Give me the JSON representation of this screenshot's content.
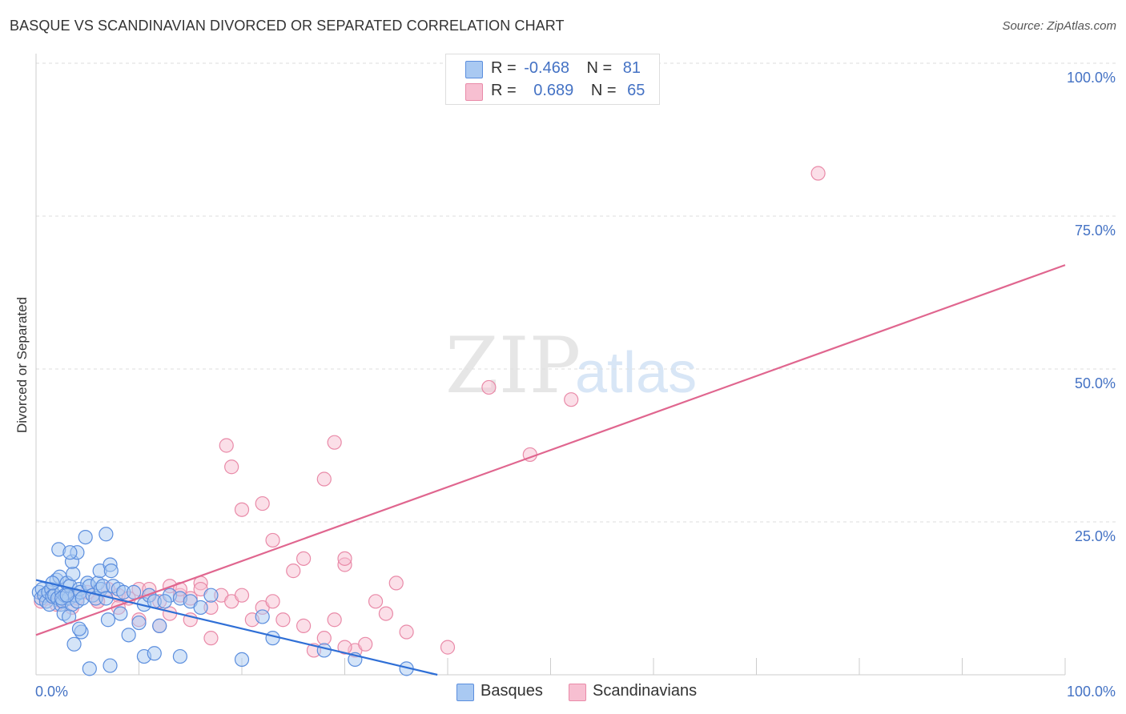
{
  "title": "BASQUE VS SCANDINAVIAN DIVORCED OR SEPARATED CORRELATION CHART",
  "source": "Source: ZipAtlas.com",
  "watermark": {
    "zip": "ZIP",
    "atlas": "atlas"
  },
  "legend": {
    "rows": [
      {
        "r_label": "R =",
        "r_value": "-0.468",
        "n_label": "N =",
        "n_value": "81"
      },
      {
        "r_label": "R =",
        "r_value": "0.689",
        "n_label": "N =",
        "n_value": "65"
      }
    ]
  },
  "bottom_legend": {
    "basques": "Basques",
    "scandinavians": "Scandinavians"
  },
  "colors": {
    "basque_fill": "#a9c9f2",
    "basque_stroke": "#5b8ede",
    "basque_line": "#2f6fd6",
    "scand_fill": "#f7bfd1",
    "scand_stroke": "#e98aa8",
    "scand_line": "#e0668f",
    "axis_label": "#4472c4",
    "grid": "#dddddd"
  },
  "chart_data": {
    "type": "scatter",
    "title": "BASQUE VS SCANDINAVIAN DIVORCED OR SEPARATED CORRELATION CHART",
    "xlabel": "",
    "ylabel": "Divorced or Separated",
    "xlim": [
      0,
      100
    ],
    "ylim": [
      0,
      100
    ],
    "x_tick_labels": [
      "0.0%",
      "100.0%"
    ],
    "y_ticks": [
      {
        "value": 25,
        "label": "25.0%"
      },
      {
        "value": 50,
        "label": "50.0%"
      },
      {
        "value": 75,
        "label": "75.0%"
      },
      {
        "value": 100,
        "label": "100.0%"
      }
    ],
    "series": [
      {
        "name": "Basques",
        "r": -0.468,
        "n": 81,
        "trend": {
          "x": [
            0,
            39
          ],
          "y": [
            15.5,
            0
          ]
        },
        "points": [
          [
            0.3,
            13.5
          ],
          [
            0.5,
            12.5
          ],
          [
            0.6,
            14
          ],
          [
            0.8,
            13
          ],
          [
            1,
            12
          ],
          [
            1.2,
            13.5
          ],
          [
            1.3,
            11.5
          ],
          [
            1.5,
            14
          ],
          [
            1.6,
            12.8
          ],
          [
            1.8,
            13
          ],
          [
            2,
            15.5
          ],
          [
            2.1,
            12.5
          ],
          [
            2.3,
            16
          ],
          [
            2.4,
            11.5
          ],
          [
            2.5,
            13.5
          ],
          [
            2.6,
            12
          ],
          [
            2.7,
            10
          ],
          [
            2.8,
            13
          ],
          [
            3,
            15
          ],
          [
            3.2,
            12.5
          ],
          [
            3.3,
            14.5
          ],
          [
            3.5,
            11.5
          ],
          [
            3.6,
            16.5
          ],
          [
            3.8,
            13
          ],
          [
            4,
            12
          ],
          [
            4.2,
            14
          ],
          [
            4.3,
            13.5
          ],
          [
            4.5,
            12.5
          ],
          [
            1.6,
            15
          ],
          [
            2.2,
            20.5
          ],
          [
            2.5,
            12.5
          ],
          [
            3,
            13
          ],
          [
            3.2,
            9.5
          ],
          [
            3.5,
            18.5
          ],
          [
            3.7,
            5
          ],
          [
            4,
            20
          ],
          [
            4.4,
            7
          ],
          [
            5,
            15
          ],
          [
            5.2,
            14.5
          ],
          [
            5.5,
            13
          ],
          [
            5.8,
            12.5
          ],
          [
            6,
            15
          ],
          [
            6.2,
            17
          ],
          [
            6.3,
            14
          ],
          [
            6.5,
            14.5
          ],
          [
            6.8,
            12.5
          ],
          [
            7,
            9
          ],
          [
            7.2,
            18
          ],
          [
            7.3,
            17
          ],
          [
            7.5,
            14.5
          ],
          [
            8,
            14
          ],
          [
            8.2,
            10
          ],
          [
            8.5,
            13.5
          ],
          [
            9,
            6.5
          ],
          [
            9.5,
            13.5
          ],
          [
            10,
            8.5
          ],
          [
            10.5,
            11.5
          ],
          [
            11,
            13
          ],
          [
            12,
            8
          ],
          [
            13,
            13
          ],
          [
            11.5,
            12
          ],
          [
            12.5,
            12
          ],
          [
            14,
            12.5
          ],
          [
            15,
            12
          ],
          [
            16,
            11
          ],
          [
            17,
            13
          ],
          [
            4.8,
            22.5
          ],
          [
            5.2,
            1
          ],
          [
            7.2,
            1.5
          ],
          [
            10.5,
            3
          ],
          [
            11.5,
            3.5
          ],
          [
            14,
            3
          ],
          [
            20,
            2.5
          ],
          [
            22,
            9.5
          ],
          [
            23,
            6
          ],
          [
            28,
            4
          ],
          [
            31,
            2.5
          ],
          [
            36,
            1
          ],
          [
            6.8,
            23
          ],
          [
            3.3,
            20
          ],
          [
            4.2,
            7.5
          ]
        ]
      },
      {
        "name": "Scandinavians",
        "r": 0.689,
        "n": 65,
        "trend": {
          "x": [
            0,
            100
          ],
          "y": [
            6.5,
            67
          ]
        },
        "points": [
          [
            0.5,
            12
          ],
          [
            1,
            12.5
          ],
          [
            1.5,
            13
          ],
          [
            2,
            11.5
          ],
          [
            2.5,
            12
          ],
          [
            3,
            13
          ],
          [
            3.5,
            11
          ],
          [
            4,
            12.5
          ],
          [
            5,
            13.5
          ],
          [
            6,
            12
          ],
          [
            7,
            14
          ],
          [
            8,
            13
          ],
          [
            9,
            12.5
          ],
          [
            10,
            14
          ],
          [
            11,
            13
          ],
          [
            12,
            12
          ],
          [
            13,
            14.5
          ],
          [
            14,
            13
          ],
          [
            15,
            12.5
          ],
          [
            16,
            15
          ],
          [
            6,
            12
          ],
          [
            8,
            11
          ],
          [
            10,
            9
          ],
          [
            11,
            14
          ],
          [
            12,
            8
          ],
          [
            13,
            10
          ],
          [
            14,
            14
          ],
          [
            15,
            9
          ],
          [
            16,
            14
          ],
          [
            17,
            11
          ],
          [
            17,
            6
          ],
          [
            18,
            13
          ],
          [
            19,
            12
          ],
          [
            20,
            13
          ],
          [
            21,
            9
          ],
          [
            22,
            11
          ],
          [
            23,
            12
          ],
          [
            24,
            9
          ],
          [
            25,
            17
          ],
          [
            26,
            8
          ],
          [
            27,
            4
          ],
          [
            28,
            6
          ],
          [
            29,
            9
          ],
          [
            30,
            18
          ],
          [
            31,
            4
          ],
          [
            32,
            5
          ],
          [
            33,
            12
          ],
          [
            34,
            10
          ],
          [
            35,
            15
          ],
          [
            36,
            7
          ],
          [
            18.5,
            37.5
          ],
          [
            19,
            34
          ],
          [
            20,
            27
          ],
          [
            22,
            28
          ],
          [
            23,
            22
          ],
          [
            26,
            19
          ],
          [
            28,
            32
          ],
          [
            29,
            38
          ],
          [
            30,
            19
          ],
          [
            30,
            4.5
          ],
          [
            40,
            4.5
          ],
          [
            44,
            47
          ],
          [
            48,
            36
          ],
          [
            52,
            45
          ],
          [
            76,
            82
          ]
        ]
      }
    ]
  }
}
